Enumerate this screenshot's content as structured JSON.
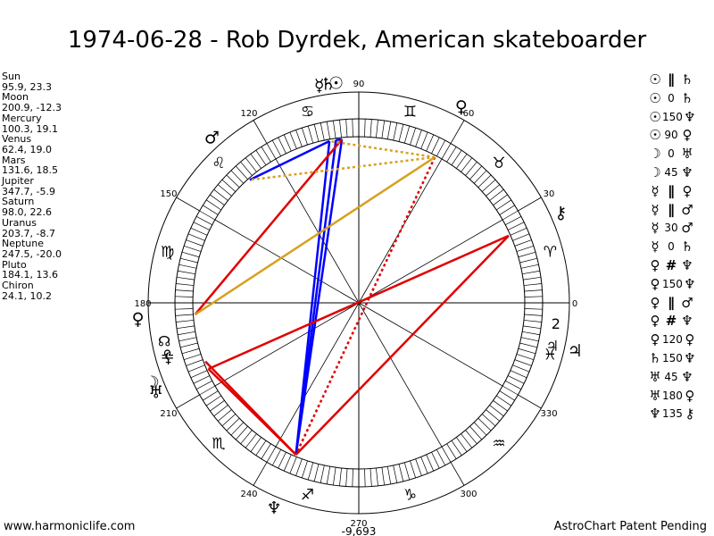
{
  "title": "1974-06-28 - Rob Dyrdek, American skateboarder",
  "planets": [
    {
      "name": "Sun",
      "coords": "95.9, 23.3",
      "glyph": "☉",
      "lon": 95.9
    },
    {
      "name": "Moon",
      "coords": "200.9, -12.3",
      "glyph": "☽",
      "lon": 200.9
    },
    {
      "name": "Mercury",
      "coords": "100.3, 19.1",
      "glyph": "☿",
      "lon": 100.3
    },
    {
      "name": "Venus",
      "coords": "62.4, 19.0",
      "glyph": "♀",
      "lon": 62.4
    },
    {
      "name": "Mars",
      "coords": "131.6, 18.5",
      "glyph": "♂",
      "lon": 131.6
    },
    {
      "name": "Jupiter",
      "coords": "347.7, -5.9",
      "glyph": "♃",
      "lon": 347.7
    },
    {
      "name": "Saturn",
      "coords": "98.0, 22.6",
      "glyph": "♄",
      "lon": 98.0
    },
    {
      "name": "Uranus",
      "coords": "203.7, -8.7",
      "glyph": "♅",
      "lon": 203.7
    },
    {
      "name": "Neptune",
      "coords": "247.5, -20.0",
      "glyph": "♆",
      "lon": 247.5
    },
    {
      "name": "Pluto",
      "coords": "184.1, 13.6",
      "glyph": "♀",
      "lon": 184.1
    },
    {
      "name": "Chiron",
      "coords": "24.1, 10.2",
      "glyph": "⚷",
      "lon": 24.1
    }
  ],
  "aspects": [
    {
      "p1": "☉",
      "aspect": "∥",
      "p2": "♄"
    },
    {
      "p1": "☉",
      "aspect": "0",
      "p2": "♄"
    },
    {
      "p1": "☉",
      "aspect": "150",
      "p2": "♆"
    },
    {
      "p1": "☉",
      "aspect": "90",
      "p2": "♀"
    },
    {
      "p1": "☽",
      "aspect": "0",
      "p2": "♅"
    },
    {
      "p1": "☽",
      "aspect": "45",
      "p2": "♆"
    },
    {
      "p1": "☿",
      "aspect": "∥",
      "p2": "♀"
    },
    {
      "p1": "☿",
      "aspect": "∥",
      "p2": "♂"
    },
    {
      "p1": "☿",
      "aspect": "30",
      "p2": "♂"
    },
    {
      "p1": "☿",
      "aspect": "0",
      "p2": "♄"
    },
    {
      "p1": "♀",
      "aspect": "#",
      "p2": "♆"
    },
    {
      "p1": "♀",
      "aspect": "150",
      "p2": "♆"
    },
    {
      "p1": "♀",
      "aspect": "∥",
      "p2": "♂"
    },
    {
      "p1": "♀",
      "aspect": "#",
      "p2": "♆"
    },
    {
      "p1": "♀",
      "aspect": "120",
      "p2": "♀"
    },
    {
      "p1": "♄",
      "aspect": "150",
      "p2": "♆"
    },
    {
      "p1": "♅",
      "aspect": "45",
      "p2": "♆"
    },
    {
      "p1": "♅",
      "aspect": "180",
      "p2": "♀"
    },
    {
      "p1": "♆",
      "aspect": "135",
      "p2": "⚷"
    }
  ],
  "wheel": {
    "degree_labels": [
      "0",
      "30",
      "60",
      "90",
      "120",
      "150",
      "180",
      "210",
      "240",
      "270",
      "300",
      "330"
    ],
    "sign_glyphs": [
      "♈",
      "♉",
      "♊",
      "♋",
      "♌",
      "♍",
      "♎",
      "♏",
      "♐",
      "♑",
      "♒",
      "♓"
    ],
    "extra_glyphs": [
      {
        "glyph": "☊",
        "lon": 191
      },
      {
        "glyph": "⚸",
        "lon": 196
      },
      {
        "glyph": "♃",
        "lon": 347.7
      },
      {
        "glyph": "2",
        "lon": -6
      }
    ],
    "bottom_value": "-9,693"
  },
  "aspect_lines": [
    {
      "a": 95.9,
      "b": 98.0,
      "color": "#0000ff",
      "dash": false
    },
    {
      "a": 100.3,
      "b": 131.6,
      "color": "#0000ff",
      "dash": false
    },
    {
      "a": 95.9,
      "b": 247.5,
      "color": "#0000ff",
      "dash": false
    },
    {
      "a": 98.0,
      "b": 247.5,
      "color": "#0000ff",
      "dash": false
    },
    {
      "a": 100.3,
      "b": 247.5,
      "color": "#0000ff",
      "dash": false
    },
    {
      "a": 95.9,
      "b": 184.1,
      "color": "#e00000",
      "dash": false
    },
    {
      "a": 200.9,
      "b": 247.5,
      "color": "#e00000",
      "dash": false
    },
    {
      "a": 203.7,
      "b": 247.5,
      "color": "#e00000",
      "dash": false
    },
    {
      "a": 62.4,
      "b": 247.5,
      "color": "#e00000",
      "dash": true
    },
    {
      "a": 203.7,
      "b": 24.1,
      "color": "#e00000",
      "dash": false
    },
    {
      "a": 247.5,
      "b": 24.1,
      "color": "#e00000",
      "dash": false
    },
    {
      "a": 62.4,
      "b": 184.1,
      "color": "#d8a020",
      "dash": false
    },
    {
      "a": 62.4,
      "b": 131.6,
      "color": "#d8a020",
      "dash": true
    },
    {
      "a": 62.4,
      "b": 100.3,
      "color": "#d8a020",
      "dash": true
    }
  ],
  "footer": {
    "left": "www.harmoniclife.com",
    "right": "AstroChart Patent Pending"
  }
}
